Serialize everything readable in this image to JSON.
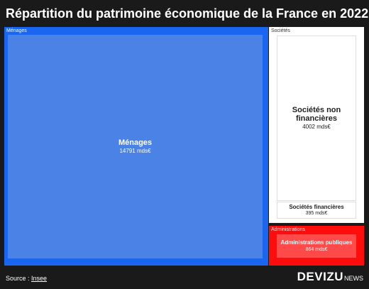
{
  "chart_data": {
    "type": "treemap",
    "title": "Répartition du patrimoine économique de la France en 2022",
    "unit": "mds€",
    "groups": [
      {
        "name": "Ménages",
        "color": "#1a66f0",
        "leaf_color": "#4b82e6",
        "children": [
          {
            "name": "Ménages",
            "value": 14791,
            "value_label": "14791 mds€"
          }
        ]
      },
      {
        "name": "Sociétés",
        "color": "#ffffff",
        "leaf_color": "#ffffff",
        "children": [
          {
            "name": "Sociétés non financières",
            "value": 4002,
            "value_label": "4002 mds€"
          },
          {
            "name": "Sociétés financières",
            "value": 395,
            "value_label": "395 mds€"
          }
        ]
      },
      {
        "name": "Administrations",
        "color": "#ff0d0d",
        "leaf_color": "#ff4a4a",
        "children": [
          {
            "name": "Administrations publiques",
            "value": 864,
            "value_label": "864 mds€"
          }
        ]
      }
    ]
  },
  "footer": {
    "source_prefix": "Source : ",
    "source_link": "Insee",
    "logo_main": "DEVIZU",
    "logo_sub": "NEWS"
  }
}
